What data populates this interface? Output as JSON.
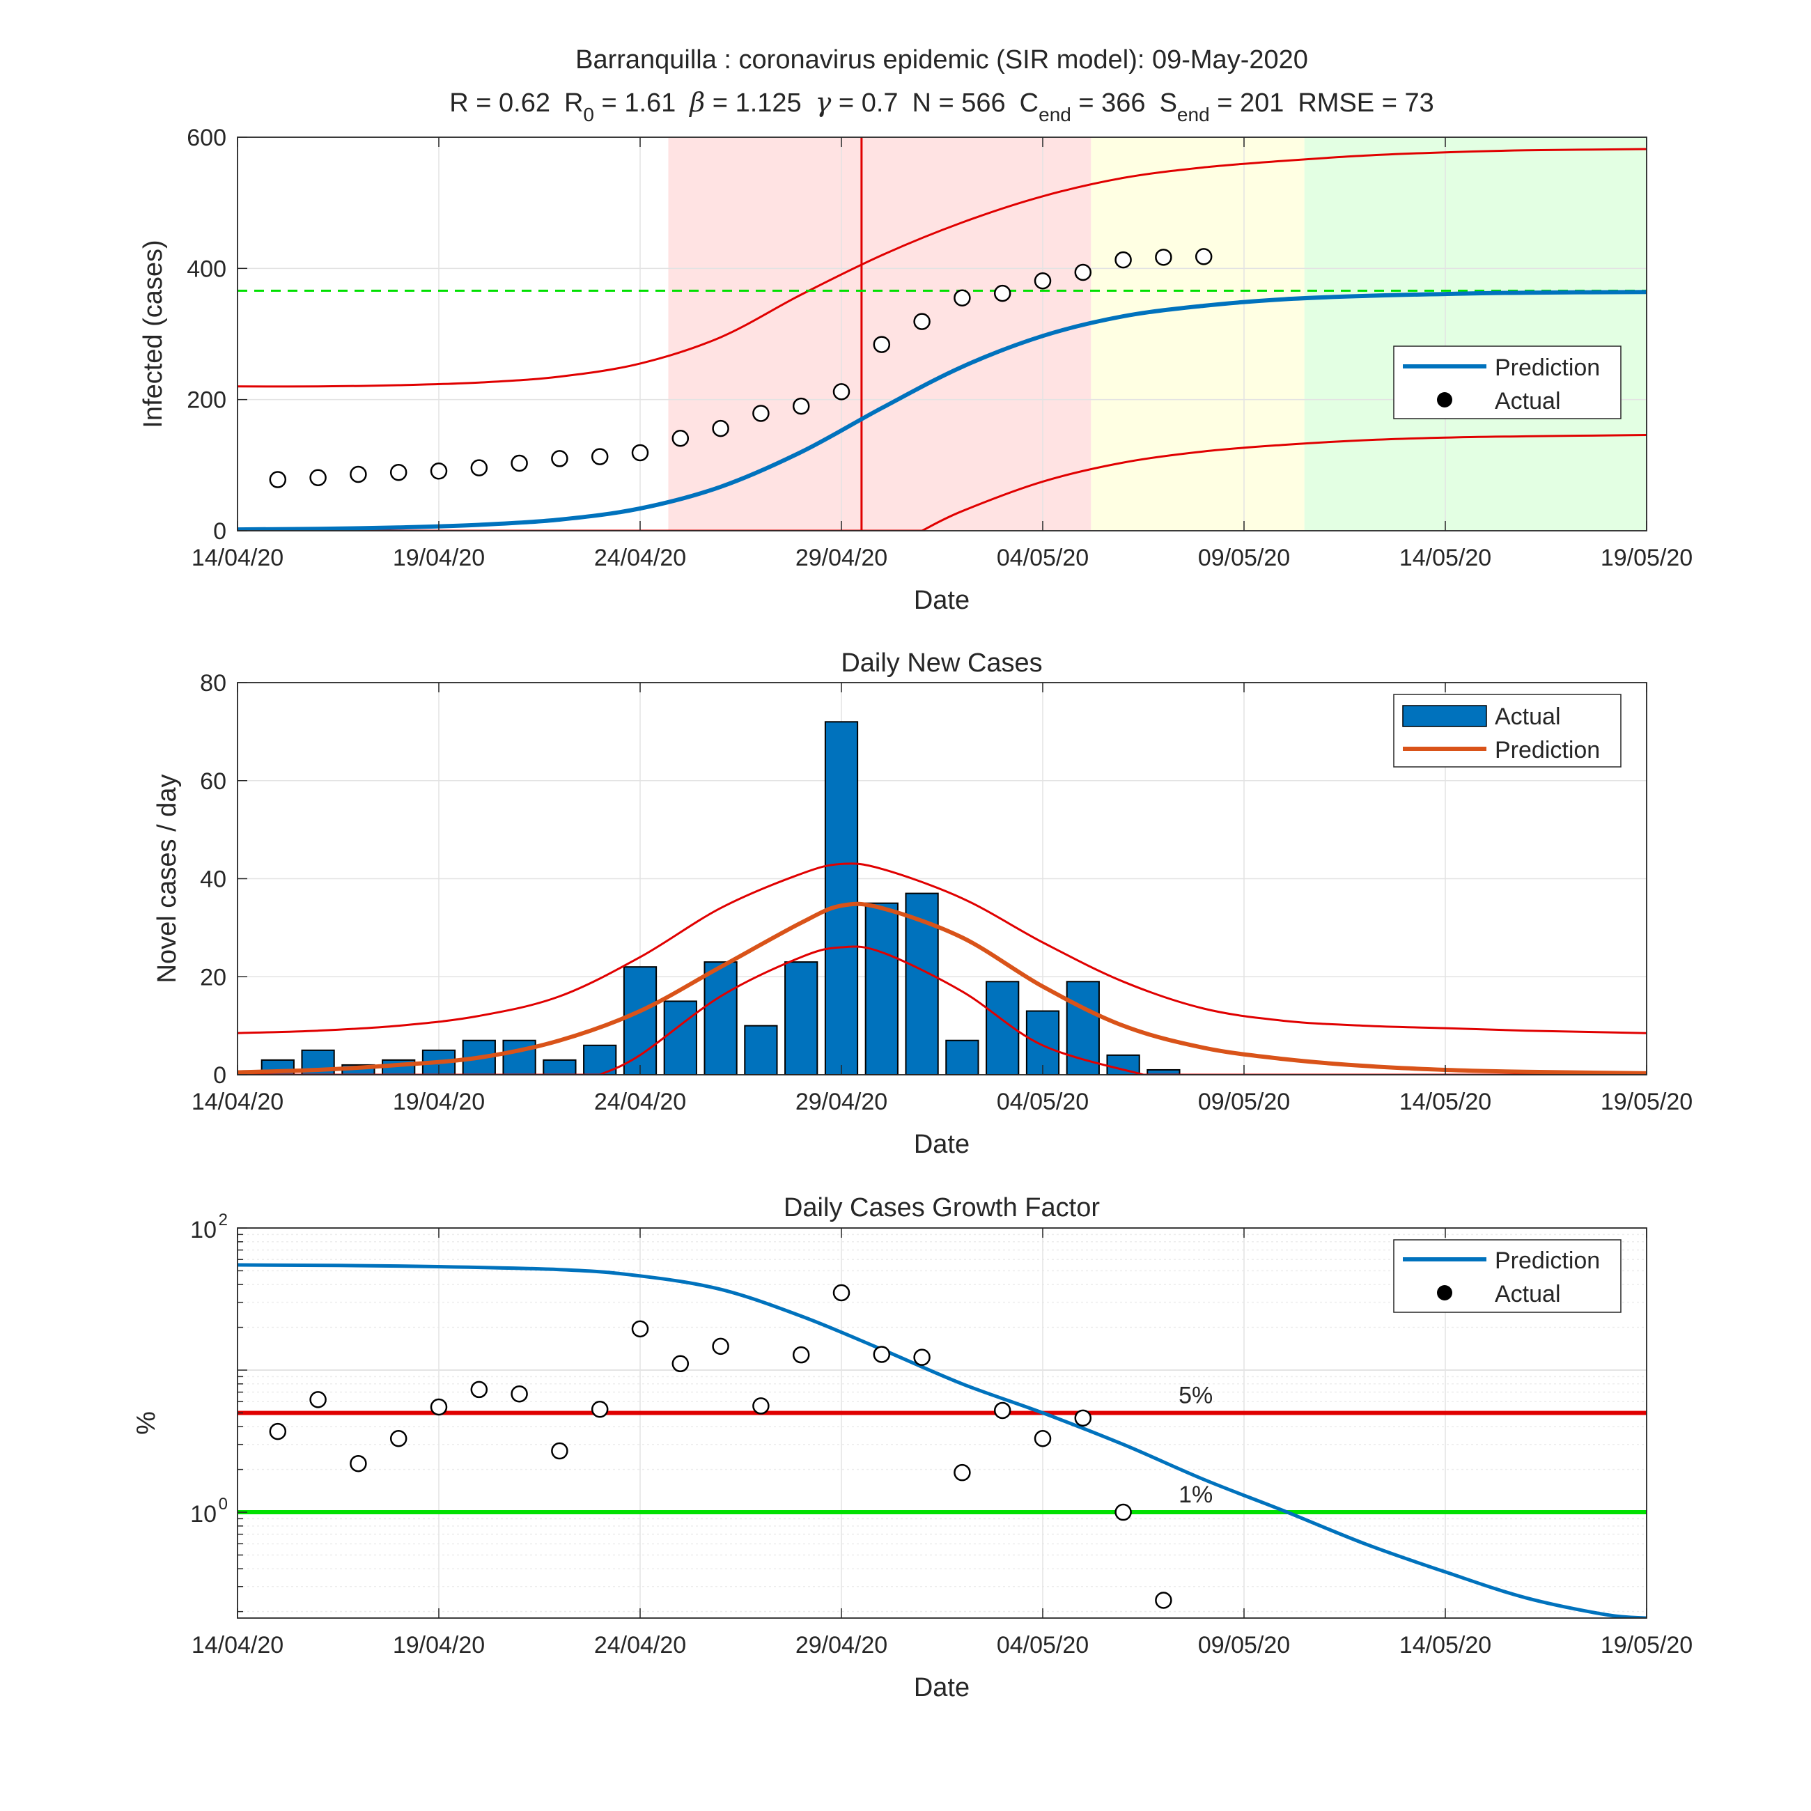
{
  "figure": {
    "title_line1": "Barranquilla : coronavirus epidemic (SIR model): 09-May-2020",
    "params": {
      "R_label": "R = ",
      "R_value": "0.62",
      "R0_label": "R",
      "R0_sub": "0",
      "R0_eq": " = ",
      "R0_value": "1.61",
      "beta_symbol": "β",
      "beta_eq": " = ",
      "beta_value": "1.125",
      "gamma_symbol": "γ",
      "gamma_eq": " = ",
      "gamma_value": "0.7",
      "N_label": "N = ",
      "N_value": "566",
      "C_label": "C",
      "C_sub": "end",
      "C_eq": " = ",
      "C_value": "366",
      "S_label": "S",
      "S_sub": "end",
      "S_eq": " = ",
      "S_value": "201",
      "RMSE_label": "RMSE = ",
      "RMSE_value": "73"
    }
  },
  "x_tick_labels": [
    "14/04/20",
    "19/04/20",
    "24/04/20",
    "29/04/20",
    "04/05/20",
    "09/05/20",
    "14/05/20",
    "19/05/20"
  ],
  "colors": {
    "prediction_blue": "#0072BD",
    "prediction_orange": "#D95319",
    "bounds_red": "#E00000",
    "threshold_green": "#00E000",
    "bar_fill": "#0072BD",
    "zone_red": "#FFE3E3",
    "zone_yellow": "#FFFFE3",
    "zone_green": "#E3FFE3"
  },
  "chart_data": [
    {
      "type": "line",
      "xlabel": "Date",
      "ylabel": "Infected (cases)",
      "x_unit": "days since 14/04/20",
      "xlim": [
        0,
        35
      ],
      "ylim": [
        0,
        600
      ],
      "y_ticks": [
        "0",
        "200",
        "400",
        "600"
      ],
      "grid": true,
      "legend_position": "right",
      "legend": [
        "Prediction",
        "Actual"
      ],
      "zones": [
        {
          "color": "red",
          "from": 10.7,
          "to": 21.2
        },
        {
          "color": "yellow",
          "from": 21.2,
          "to": 26.5
        },
        {
          "color": "green",
          "from": 26.5,
          "to": 35
        }
      ],
      "vertical_line_x": 15.5,
      "horizontal_dashed_y": 366,
      "actual_x": [
        1,
        2,
        3,
        4,
        5,
        6,
        7,
        8,
        9,
        10,
        11,
        12,
        13,
        14,
        15,
        16,
        17,
        18,
        19,
        20,
        21,
        22,
        23,
        24
      ],
      "actual_y": [
        78,
        81,
        86,
        89,
        91,
        96,
        103,
        110,
        113,
        119,
        141,
        156,
        179,
        190,
        212,
        284,
        319,
        355,
        362,
        381,
        394,
        413,
        417,
        418
      ],
      "prediction_x": [
        0,
        2,
        4,
        6,
        8,
        10,
        12,
        14,
        16,
        18,
        20,
        22,
        24,
        26,
        28,
        30,
        32,
        35
      ],
      "prediction_y": [
        2,
        3,
        5,
        9,
        17,
        34,
        67,
        120,
        187,
        250,
        297,
        327,
        343,
        353,
        358,
        361,
        363,
        364
      ],
      "upper_bound_y": [
        220,
        220,
        222,
        226,
        235,
        255,
        295,
        360,
        420,
        470,
        510,
        538,
        554,
        564,
        572,
        577,
        580,
        582
      ],
      "lower_bound_x": [
        17,
        18,
        20,
        22,
        24,
        26,
        28,
        30,
        32,
        35
      ],
      "lower_bound_y": [
        0,
        30,
        75,
        104,
        121,
        131,
        138,
        142,
        144,
        146
      ]
    },
    {
      "type": "bar",
      "title": "Daily New Cases",
      "xlabel": "Date",
      "ylabel": "Novel cases / day",
      "x_unit": "days since 14/04/20",
      "xlim": [
        0,
        35
      ],
      "ylim": [
        0,
        80
      ],
      "y_ticks": [
        "0",
        "20",
        "40",
        "60",
        "80"
      ],
      "grid": true,
      "legend_position": "top-right",
      "legend": [
        "Actual",
        "Prediction"
      ],
      "bars_x": [
        1,
        2,
        3,
        4,
        5,
        6,
        7,
        8,
        9,
        10,
        11,
        12,
        13,
        14,
        15,
        16,
        17,
        18,
        19,
        20,
        21,
        22,
        23
      ],
      "bars_y": [
        3,
        5,
        2,
        3,
        5,
        7,
        7,
        3,
        6,
        22,
        15,
        23,
        10,
        23,
        72,
        35,
        37,
        7,
        19,
        13,
        19,
        4,
        1
      ],
      "prediction_x": [
        0,
        2,
        4,
        6,
        8,
        10,
        12,
        14,
        15,
        16,
        18,
        20,
        22,
        24,
        26,
        28,
        30,
        32,
        35
      ],
      "prediction_y": [
        0.5,
        1,
        2,
        3.5,
        7,
        13,
        22,
        31,
        34.5,
        34,
        28,
        18,
        10,
        5.5,
        3.2,
        1.8,
        1,
        0.6,
        0.3
      ],
      "upper_x": [
        0,
        2,
        4,
        6,
        8,
        10,
        12,
        14,
        15,
        16,
        18,
        20,
        22,
        24,
        26,
        28,
        30,
        32,
        35
      ],
      "upper_y": [
        8.5,
        9,
        10,
        12,
        16,
        24,
        34,
        41,
        43,
        42,
        36,
        27,
        19,
        13.5,
        11,
        10,
        9.5,
        9,
        8.5
      ],
      "lower_x": [
        9,
        10,
        12,
        14,
        15,
        16,
        18,
        20,
        22.5
      ],
      "lower_y": [
        0,
        4,
        16,
        24,
        26,
        25,
        17,
        6,
        0
      ]
    },
    {
      "type": "scatter",
      "title": "Daily Cases Growth Factor",
      "xlabel": "Date",
      "ylabel": "%",
      "x_unit": "days since 14/04/20",
      "xlim": [
        0,
        35
      ],
      "y_scale": "log",
      "ylim": [
        0.18,
        100
      ],
      "y_tick_base": "10",
      "y_tick_exponents": [
        "2",
        "0"
      ],
      "grid": true,
      "legend_position": "top-right",
      "legend": [
        "Prediction",
        "Actual"
      ],
      "threshold_lines": [
        {
          "y": 5,
          "label": "5%",
          "color": "red"
        },
        {
          "y": 1,
          "label": "1%",
          "color": "green"
        }
      ],
      "actual_x": [
        1,
        2,
        3,
        4,
        5,
        6,
        7,
        8,
        9,
        10,
        11,
        12,
        13,
        14,
        15,
        16,
        17,
        18,
        19,
        20,
        21,
        22,
        23
      ],
      "actual_y": [
        3.7,
        6.2,
        2.2,
        3.3,
        5.5,
        7.3,
        6.8,
        2.7,
        5.3,
        19.5,
        11.1,
        14.7,
        5.6,
        12.8,
        35,
        12.9,
        12.3,
        1.9,
        5.2,
        3.3,
        4.6,
        1.0,
        0.24
      ],
      "prediction_x": [
        0,
        4,
        8,
        10,
        12,
        14,
        16,
        18,
        20,
        22,
        24,
        26,
        28,
        30,
        32,
        34,
        35
      ],
      "prediction_y": [
        55,
        54,
        51,
        46,
        37,
        24,
        14,
        8,
        5,
        3,
        1.7,
        1.02,
        0.6,
        0.38,
        0.25,
        0.19,
        0.18
      ]
    }
  ]
}
